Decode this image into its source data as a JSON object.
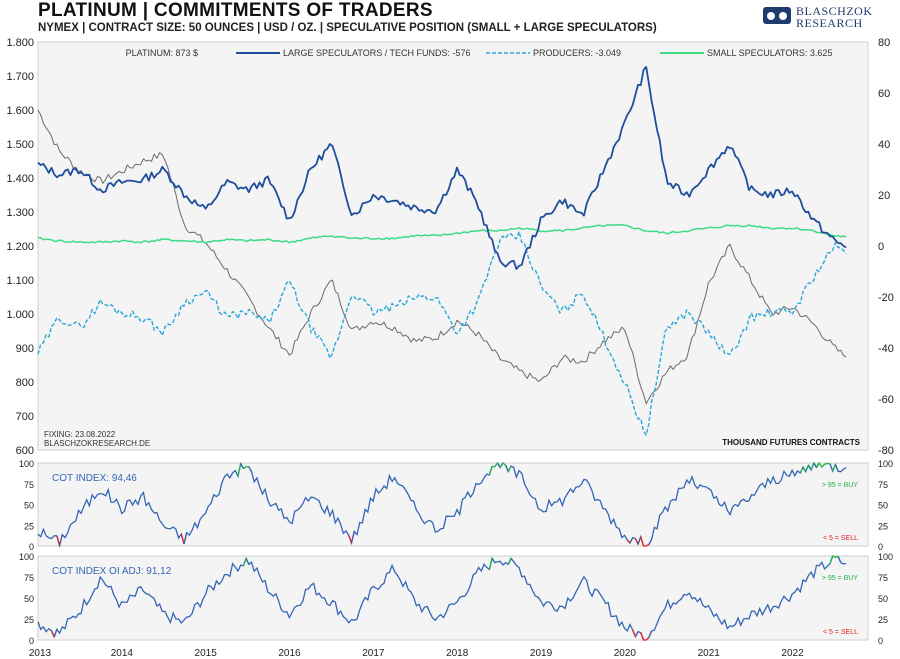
{
  "header": {
    "title": "PLATINUM | COMMITMENTS OF TRADERS",
    "subtitle": "NYMEX  |  CONTRACT SIZE: 50 OUNCES  |  USD / OZ.  |  SPECULATIVE  POSITION (SMALL + LARGE SPECULATORS)"
  },
  "logo": {
    "line1": "BLASCHZOK",
    "line2": "RESEARCH"
  },
  "colors": {
    "price": "#6b6b6b",
    "large": "#1f4e9e",
    "producers": "#2aa7d8",
    "small": "#3ddc84",
    "cot": "#3466b5",
    "buy": "#22b14c",
    "sell": "#e02020"
  },
  "chart_data": [
    {
      "type": "line",
      "title": "PLATINUM | COMMITMENTS OF TRADERS",
      "legend": [
        {
          "name": "PLATINUM: 873 $"
        },
        {
          "name": "LARGE SPECULATORS / TECH FUNDS: -576"
        },
        {
          "name": "PRODUCERS: -3.049"
        },
        {
          "name": "SMALL SPECULATORS: 3.625"
        }
      ],
      "left_axis": {
        "label": "USD / oz",
        "ylim": [
          600,
          1800
        ],
        "ticks": [
          "600",
          "700",
          "800",
          "900",
          "1.000",
          "1.100",
          "1.200",
          "1.300",
          "1.400",
          "1.500",
          "1.600",
          "1.700",
          "1.800"
        ]
      },
      "right_axis": {
        "label": "THOUSAND FUTURES CONTRACTS",
        "ylim": [
          -80,
          80
        ],
        "ticks": [
          "-80",
          "-60",
          "-40",
          "-20",
          "0",
          "20",
          "40",
          "60",
          "80"
        ]
      },
      "x_ticks": [
        "2013",
        "2014",
        "2015",
        "2016",
        "2017",
        "2018",
        "2019",
        "2020",
        "2021",
        "2022"
      ],
      "notes": [
        "FIXING: 23.08.2022",
        "BLASCHZOKRESEARCH.DE"
      ],
      "axis_note": "THOUSAND FUTURES CONTRACTS",
      "x": [
        2013.0,
        2013.25,
        2013.5,
        2013.75,
        2014.0,
        2014.25,
        2014.5,
        2014.75,
        2015.0,
        2015.25,
        2015.5,
        2015.75,
        2016.0,
        2016.25,
        2016.5,
        2016.75,
        2017.0,
        2017.25,
        2017.5,
        2017.75,
        2018.0,
        2018.25,
        2018.5,
        2018.75,
        2019.0,
        2019.25,
        2019.5,
        2019.75,
        2020.0,
        2020.25,
        2020.5,
        2020.75,
        2021.0,
        2021.25,
        2021.5,
        2021.75,
        2022.0,
        2022.25,
        2022.5,
        2022.64
      ],
      "series": [
        {
          "name": "Platinum price",
          "axis": "left",
          "values": [
            1600,
            1480,
            1420,
            1390,
            1420,
            1450,
            1470,
            1260,
            1210,
            1130,
            1050,
            960,
            880,
            1000,
            1100,
            950,
            980,
            960,
            920,
            930,
            980,
            940,
            870,
            830,
            800,
            870,
            860,
            920,
            960,
            740,
            830,
            880,
            1090,
            1200,
            1100,
            1000,
            1020,
            970,
            900,
            873
          ]
        },
        {
          "name": "Large speculators / tech funds",
          "axis": "right",
          "values": [
            32,
            28,
            30,
            22,
            25,
            26,
            30,
            20,
            14,
            25,
            22,
            26,
            10,
            30,
            40,
            12,
            20,
            18,
            15,
            14,
            30,
            16,
            -6,
            -8,
            10,
            18,
            12,
            30,
            48,
            70,
            25,
            20,
            30,
            40,
            22,
            20,
            22,
            10,
            2,
            -0.6
          ]
        },
        {
          "name": "Producers",
          "axis": "right",
          "values": [
            -42,
            -28,
            -32,
            -22,
            -26,
            -28,
            -34,
            -22,
            -18,
            -28,
            -26,
            -30,
            -14,
            -32,
            -44,
            -18,
            -26,
            -24,
            -20,
            -20,
            -34,
            -22,
            2,
            4,
            -16,
            -26,
            -18,
            -36,
            -54,
            -74,
            -32,
            -26,
            -34,
            -44,
            -28,
            -26,
            -26,
            -12,
            0,
            -3.0
          ]
        },
        {
          "name": "Small speculators",
          "axis": "right",
          "values": [
            3,
            2,
            1.5,
            1.5,
            2,
            1.5,
            2.5,
            2,
            1.5,
            2.5,
            2,
            2.5,
            1.5,
            3,
            4,
            3,
            3,
            3,
            4,
            4,
            5,
            6,
            6,
            7,
            6,
            6,
            7,
            8,
            8,
            6,
            5,
            6,
            7,
            8,
            8,
            7,
            7,
            6,
            4,
            3.6
          ]
        }
      ]
    },
    {
      "type": "line",
      "title": "COT INDEX: 94,46",
      "ylim": [
        0,
        100
      ],
      "ticks": [
        "0",
        "25",
        "50",
        "75",
        "100"
      ],
      "threshold_labels": [
        "> 95 = BUY",
        "< 5 = SELL"
      ],
      "x": [
        2013.0,
        2013.25,
        2013.5,
        2013.75,
        2014.0,
        2014.25,
        2014.5,
        2014.75,
        2015.0,
        2015.25,
        2015.5,
        2015.75,
        2016.0,
        2016.25,
        2016.5,
        2016.75,
        2017.0,
        2017.25,
        2017.5,
        2017.75,
        2018.0,
        2018.25,
        2018.5,
        2018.75,
        2019.0,
        2019.25,
        2019.5,
        2019.75,
        2020.0,
        2020.25,
        2020.5,
        2020.75,
        2021.0,
        2021.25,
        2021.5,
        2021.75,
        2022.0,
        2022.25,
        2022.5,
        2022.64
      ],
      "values": [
        18,
        5,
        40,
        70,
        45,
        60,
        25,
        8,
        40,
        85,
        96,
        55,
        30,
        60,
        40,
        8,
        60,
        85,
        45,
        20,
        40,
        80,
        98,
        85,
        45,
        55,
        80,
        45,
        12,
        2,
        45,
        80,
        65,
        40,
        60,
        80,
        85,
        98,
        96,
        94.46
      ]
    },
    {
      "type": "line",
      "title": "COT INDEX OI ADJ: 91,12",
      "ylim": [
        0,
        100
      ],
      "ticks": [
        "0",
        "25",
        "50",
        "75",
        "100"
      ],
      "threshold_labels": [
        "> 95 = BUY",
        "< 5 = SELL"
      ],
      "x": [
        2013.0,
        2013.25,
        2013.5,
        2013.75,
        2014.0,
        2014.25,
        2014.5,
        2014.75,
        2015.0,
        2015.25,
        2015.5,
        2015.75,
        2016.0,
        2016.25,
        2016.5,
        2016.75,
        2017.0,
        2017.25,
        2017.5,
        2017.75,
        2018.0,
        2018.25,
        2018.5,
        2018.75,
        2019.0,
        2019.25,
        2019.5,
        2019.75,
        2020.0,
        2020.25,
        2020.5,
        2020.75,
        2021.0,
        2021.25,
        2021.5,
        2021.75,
        2022.0,
        2022.25,
        2022.5,
        2022.64
      ],
      "values": [
        20,
        8,
        35,
        75,
        40,
        60,
        30,
        20,
        55,
        80,
        96,
        60,
        30,
        65,
        45,
        20,
        60,
        85,
        45,
        25,
        45,
        80,
        98,
        85,
        45,
        40,
        70,
        45,
        15,
        3,
        40,
        60,
        35,
        15,
        30,
        40,
        55,
        80,
        96,
        91.12
      ]
    }
  ]
}
